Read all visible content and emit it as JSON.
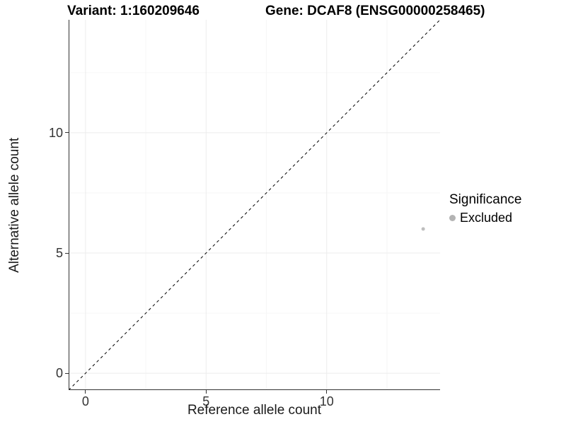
{
  "chart_data": {
    "type": "scatter",
    "title_left": "Variant: 1:160209646",
    "title_right": "Gene: DCAF8 (ENSG00000258465)",
    "xlabel": "Reference allele count",
    "ylabel": "Alternative allele count",
    "xlim": [
      -0.7,
      14.7
    ],
    "ylim": [
      -0.7,
      14.7
    ],
    "x_ticks": [
      0,
      5,
      10
    ],
    "y_ticks": [
      0,
      5,
      10
    ],
    "x_minor_ticks": [
      2.5,
      7.5,
      12.5
    ],
    "y_minor_ticks": [
      2.5,
      7.5,
      12.5
    ],
    "grid": true,
    "reference_line": {
      "type": "identity",
      "style": "dashed",
      "color": "#000000"
    },
    "series": [
      {
        "name": "Excluded",
        "color": "#bebebe",
        "points": [
          {
            "x": 14,
            "y": 6
          }
        ]
      }
    ],
    "legend": {
      "title": "Significance",
      "position": "right",
      "entries": [
        {
          "label": "Excluded",
          "color": "#b3b3b3"
        }
      ]
    },
    "colors": {
      "grid_major": "#ececec",
      "grid_minor": "#f6f6f6",
      "axis_line": "#333333",
      "axis_text": "#333333"
    }
  }
}
